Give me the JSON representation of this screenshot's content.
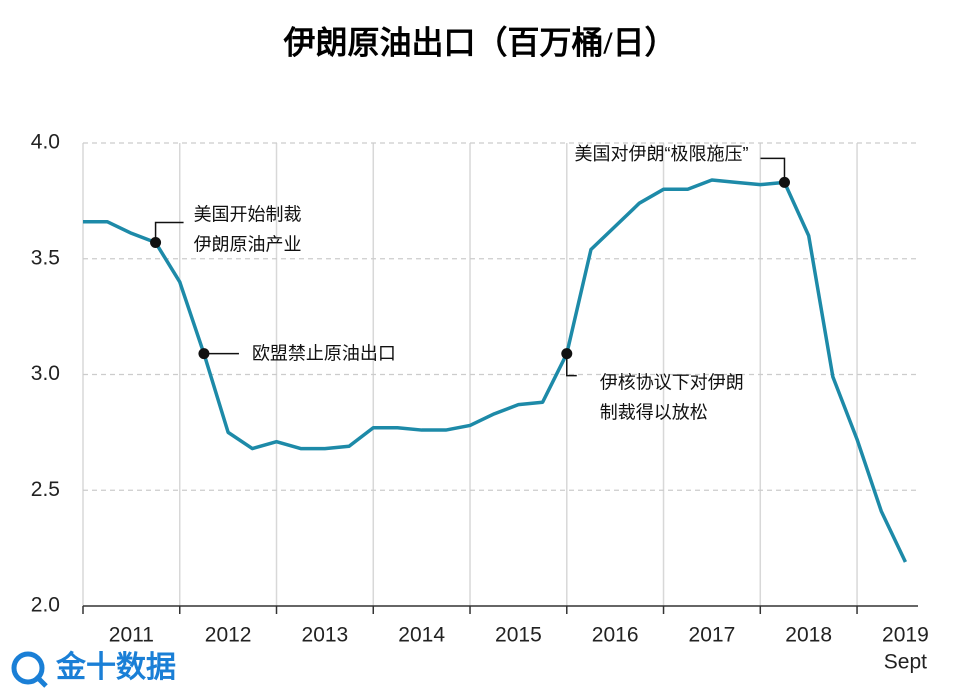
{
  "chart_data": {
    "type": "line",
    "title": "伊朗原油出口（百万桶/日）",
    "x": [
      2011,
      2011.25,
      2011.5,
      2011.75,
      2012,
      2012.25,
      2012.5,
      2012.75,
      2013,
      2013.25,
      2013.5,
      2013.75,
      2014,
      2014.25,
      2014.5,
      2014.75,
      2015,
      2015.25,
      2015.5,
      2015.75,
      2016,
      2016.25,
      2016.5,
      2016.75,
      2017,
      2017.25,
      2017.5,
      2017.75,
      2018,
      2018.25,
      2018.5,
      2018.75,
      2019,
      2019.25,
      2019.5
    ],
    "series": [
      {
        "color": "#1d8aa8",
        "values": [
          3.66,
          3.66,
          3.61,
          3.57,
          3.4,
          3.09,
          2.75,
          2.68,
          2.71,
          2.68,
          2.68,
          2.69,
          2.77,
          2.77,
          2.76,
          2.76,
          2.78,
          2.83,
          2.87,
          2.88,
          3.09,
          3.54,
          3.64,
          3.74,
          3.8,
          3.8,
          3.84,
          3.83,
          3.82,
          3.83,
          3.6,
          2.99,
          2.72,
          2.41,
          2.19
        ]
      }
    ],
    "xlim": [
      2011,
      2019.63
    ],
    "xticks": [
      {
        "value": 2011,
        "label": "2011"
      },
      {
        "value": 2012,
        "label": "2012"
      },
      {
        "value": 2013,
        "label": "2013"
      },
      {
        "value": 2014,
        "label": "2014"
      },
      {
        "value": 2015,
        "label": "2015"
      },
      {
        "value": 2016,
        "label": "2016"
      },
      {
        "value": 2017,
        "label": "2017"
      },
      {
        "value": 2018,
        "label": "2018"
      },
      {
        "value": 2019,
        "label": "2019"
      }
    ],
    "x_last_note": "Sept",
    "ylim": [
      2.0,
      4.0
    ],
    "yticks": [
      {
        "value": 2.0,
        "label": "2.0"
      },
      {
        "value": 2.5,
        "label": "2.5"
      },
      {
        "value": 3.0,
        "label": "3.0"
      },
      {
        "value": 3.5,
        "label": "3.5"
      },
      {
        "value": 4.0,
        "label": "4.0"
      }
    ],
    "grid": true,
    "annotations": [
      {
        "x": 2011.75,
        "y": 3.57,
        "lines": [
          "美国开始制裁",
          "伊朗原油产业"
        ]
      },
      {
        "x": 2012.25,
        "y": 3.09,
        "lines": [
          "欧盟禁止原油出口"
        ]
      },
      {
        "x": 2016,
        "y": 3.09,
        "lines": [
          "伊核协议下对伊朗",
          "制裁得以放松"
        ]
      },
      {
        "x": 2018.25,
        "y": 3.83,
        "lines": [
          "美国对伊朗“极限施压”"
        ]
      }
    ]
  },
  "watermark": "金十数据"
}
